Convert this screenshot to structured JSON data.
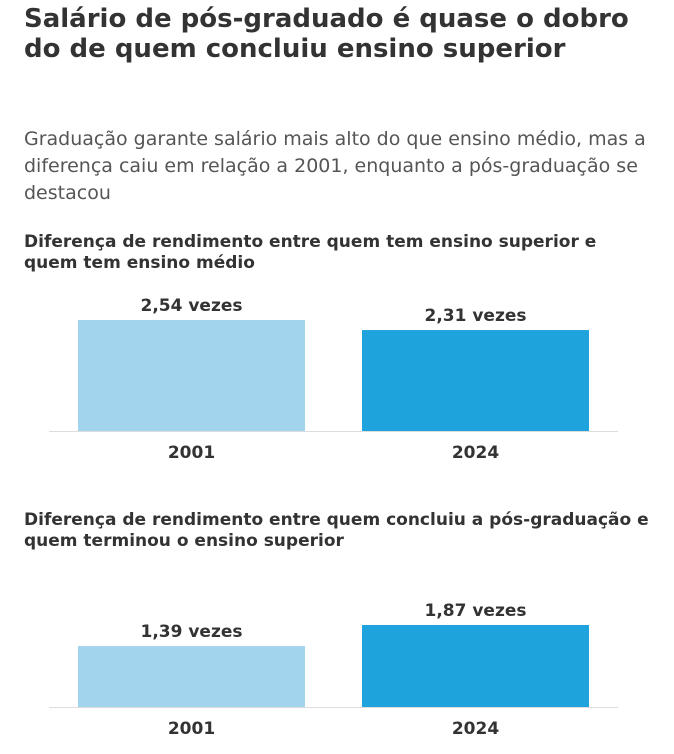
{
  "header": {
    "title": "Salário de pós-graduado é quase o dobro do de quem concluiu ensino superior",
    "subtitle": "Graduação garante salário mais alto do que ensino médio, mas a diferença caiu em relação a 2001, enquanto a pós-graduação se destacou"
  },
  "colors": {
    "light": "#a3d4ed",
    "dark": "#1fa3dc",
    "axis": "#dddddd",
    "text": "#333333"
  },
  "chart_data": [
    {
      "type": "bar",
      "title": "Diferença de rendimento entre quem tem ensino superior e quem tem ensino médio",
      "categories": [
        "2001",
        "2024"
      ],
      "values": [
        2.54,
        2.31
      ],
      "data_labels": [
        "2,54 vezes",
        "2,31 vezes"
      ],
      "xlabel": "",
      "ylabel": "",
      "ylim": [
        0,
        2.54
      ],
      "grid": false
    },
    {
      "type": "bar",
      "title": "Diferença de rendimento entre quem concluiu a pós-graduação e quem terminou o ensino superior",
      "categories": [
        "2001",
        "2024"
      ],
      "values": [
        1.39,
        1.87
      ],
      "data_labels": [
        "1,39 vezes",
        "1,87 vezes"
      ],
      "xlabel": "",
      "ylabel": "",
      "ylim": [
        0,
        1.87
      ],
      "grid": false
    }
  ]
}
